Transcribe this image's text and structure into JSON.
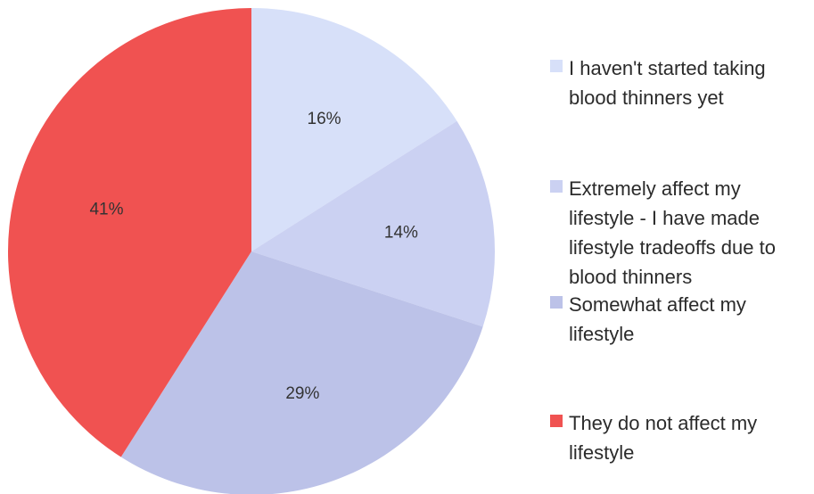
{
  "chart_data": {
    "type": "pie",
    "start_angle_deg": 0,
    "direction": "clockwise",
    "slices": [
      {
        "label": "I haven't started taking blood thinners yet",
        "value": 16,
        "display": "16%",
        "color": "#d7e0f9",
        "label_color": "#333333"
      },
      {
        "label": "Extremely affect my lifestyle - I have made lifestyle tradeoffs due to blood thinners",
        "value": 14,
        "display": "14%",
        "color": "#cbd1f2",
        "label_color": "#333333"
      },
      {
        "label": "Somewhat affect my lifestyle",
        "value": 29,
        "display": "29%",
        "color": "#bcc2e8",
        "label_color": "#333333"
      },
      {
        "label": "They do not affect my lifestyle",
        "value": 41,
        "display": "41%",
        "color": "#f05251",
        "label_color": "#ffffff"
      }
    ],
    "legend_position": "right"
  }
}
